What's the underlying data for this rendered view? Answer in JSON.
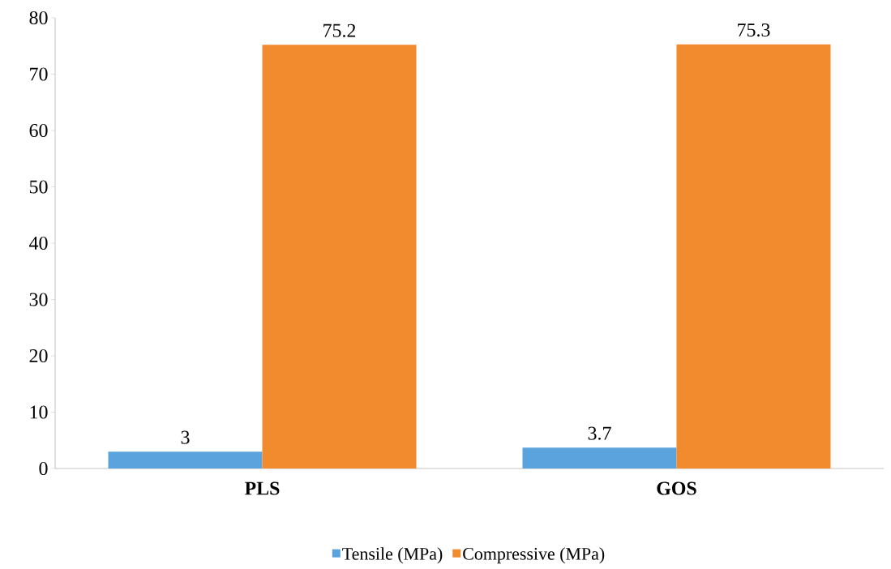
{
  "chart_data": {
    "type": "bar",
    "categories": [
      "PLS",
      "GOS"
    ],
    "series": [
      {
        "name": "Tensile (MPa)",
        "color": "#5ba3dc",
        "values": [
          3,
          3.7
        ]
      },
      {
        "name": "Compressive (MPa)",
        "color": "#f28a2e",
        "values": [
          75.2,
          75.3
        ]
      }
    ],
    "ylim": [
      0,
      80
    ],
    "yticks": [
      0,
      10,
      20,
      30,
      40,
      50,
      60,
      70,
      80
    ],
    "data_labels": true,
    "legend": "bottom",
    "grid": false
  }
}
